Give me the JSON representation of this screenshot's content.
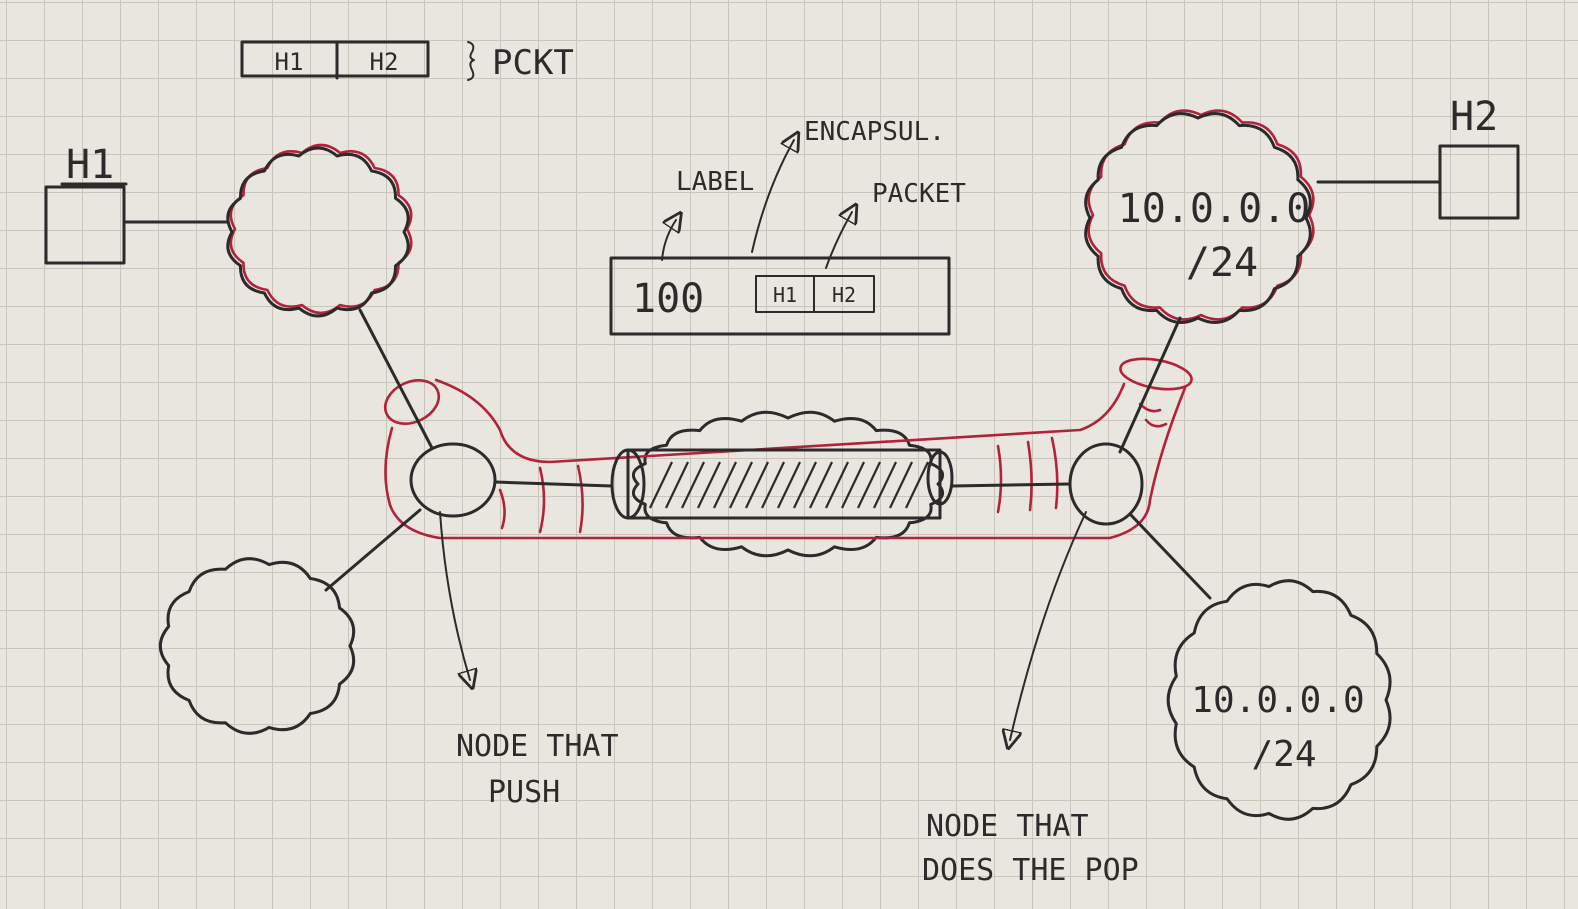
{
  "packet_legend": {
    "h1": "H1",
    "h2": "H2",
    "label": "PCKT"
  },
  "hosts": {
    "left": "H1",
    "right": "H2"
  },
  "encapsulation": {
    "label_annotation": "LABEL",
    "encapsulation_annotation": "ENCAPSUL.",
    "packet_annotation": "PACKET",
    "label_value": "100",
    "inner_h1": "H1",
    "inner_h2": "H2"
  },
  "networks": {
    "top_right": {
      "line1": "10.0.0.0",
      "line2": "/24"
    },
    "bottom_right": {
      "line1": "10.0.0.0",
      "line2": "/24"
    }
  },
  "annotations": {
    "push_line1": "NODE THAT",
    "push_line2": "PUSH",
    "pop_line1": "NODE THAT",
    "pop_line2": "DOES THE POP"
  },
  "colors": {
    "ink": "#2b2b2b",
    "tunnel": "#b3213a",
    "paper": "#e9e6df"
  }
}
